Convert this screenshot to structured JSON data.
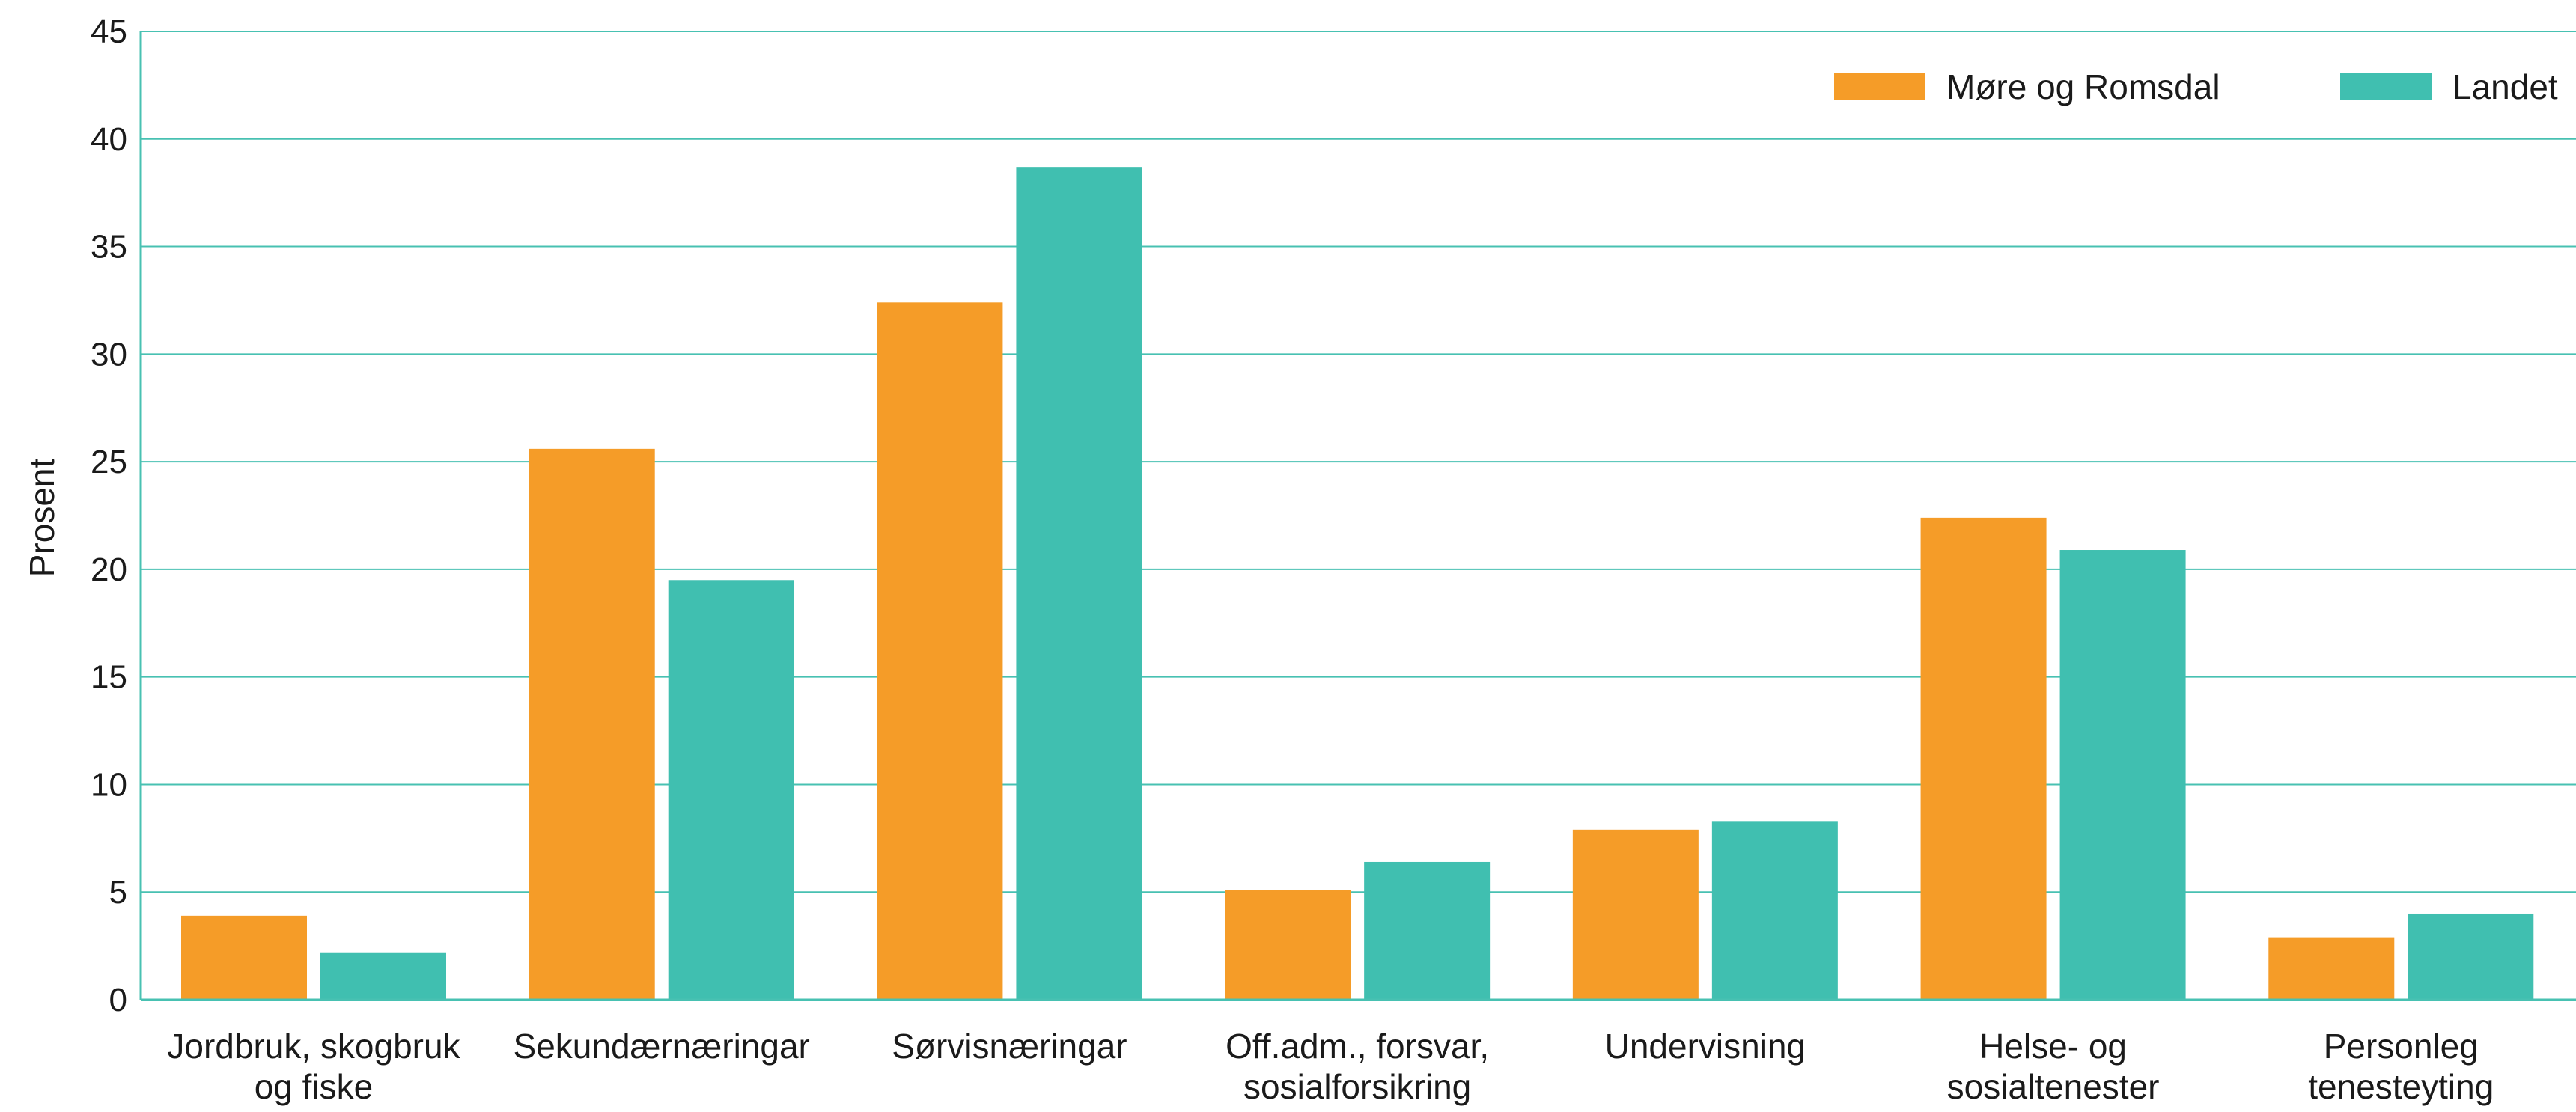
{
  "chart_data": {
    "type": "bar",
    "title": "",
    "xlabel": "",
    "ylabel": "Prosent",
    "ylim": [
      0,
      45
    ],
    "yticks": [
      "0",
      "5",
      "10",
      "15",
      "20",
      "25",
      "30",
      "35",
      "40",
      "45"
    ],
    "grid": true,
    "legend_position": "top-right",
    "categories": [
      [
        "Jordbruk, skogbruk",
        "og fiske"
      ],
      [
        "Sekundærnæringar"
      ],
      [
        "Sørvisnæringar"
      ],
      [
        "Off.adm., forsvar,",
        "sosialforsikring"
      ],
      [
        "Undervisning"
      ],
      [
        "Helse- og",
        "sosialtenester"
      ],
      [
        "Personleg",
        "tenesteyting"
      ]
    ],
    "series": [
      {
        "name": "Møre og Romsdal",
        "color": "#f59c28",
        "values": [
          3.9,
          25.6,
          32.4,
          5.1,
          7.9,
          22.4,
          2.9
        ]
      },
      {
        "name": "Landet",
        "color": "#40bfb0",
        "values": [
          2.2,
          19.5,
          38.7,
          6.4,
          8.3,
          20.9,
          4.0
        ]
      }
    ]
  },
  "colors": {
    "grid": "#48c1b2",
    "axis": "#48c1b2",
    "text": "#1a1a1a"
  }
}
